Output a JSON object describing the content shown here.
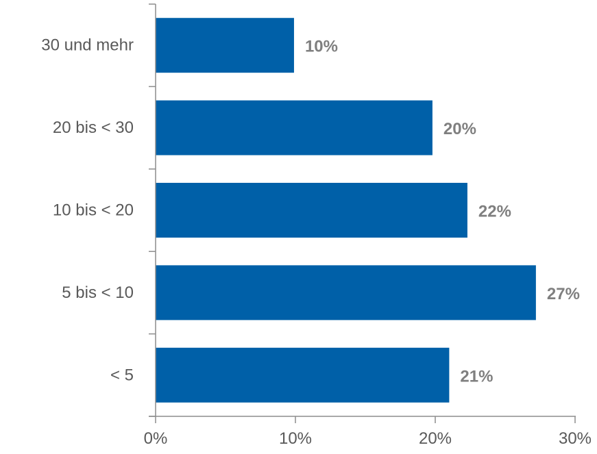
{
  "chart_data": {
    "type": "bar",
    "orientation": "horizontal",
    "categories": [
      "30 und mehr",
      "20 bis < 30",
      "10 bis < 20",
      "5 bis < 10",
      "< 5"
    ],
    "values": [
      9.9,
      19.8,
      22.3,
      27.2,
      21.0
    ],
    "data_labels": [
      "10%",
      "20%",
      "22%",
      "27%",
      "21%"
    ],
    "x_ticks": [
      "0%",
      "10%",
      "20%",
      "30%"
    ],
    "xlim": [
      0,
      30
    ],
    "bar_color": "#0060a8",
    "grid": false,
    "legend": "none"
  }
}
